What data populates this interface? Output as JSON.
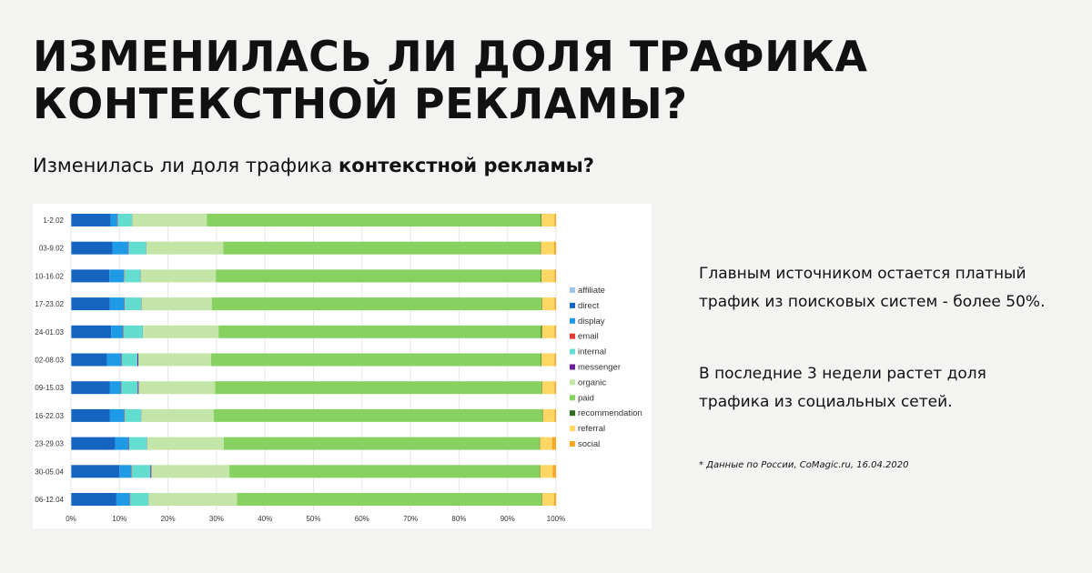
{
  "title": "ИЗМЕНИЛАСЬ ЛИ ДОЛЯ ТРАФИКА КОНТЕКСТНОЙ РЕКЛАМЫ?",
  "subtitle": {
    "prefix": "Изменилась ли доля трафика ",
    "highlight": "контекстной рекламы?"
  },
  "notes": [
    "Главным источником остается платный трафик из поисковых систем - более 50%.",
    "В последние 3 недели  растет доля трафика из социальных сетей."
  ],
  "source": "* Данные по России, CoMagic.ru, 16.04.2020",
  "chart_data": {
    "type": "bar",
    "orientation": "horizontal",
    "stacked": true,
    "normalized": true,
    "title": "",
    "xlabel": "",
    "ylabel": "",
    "xlim": [
      0,
      100
    ],
    "x_ticks": [
      "0%",
      "10%",
      "20%",
      "30%",
      "40%",
      "50%",
      "60%",
      "70%",
      "80%",
      "90%",
      "100%"
    ],
    "grid": true,
    "legend_position": "right",
    "categories": [
      "1-2.02",
      "03-9.02",
      "10-16.02",
      "17-23.02",
      "24-01.03",
      "02-08.03",
      "09-15.03",
      "16-22.03",
      "23-29.03",
      "30-05.04",
      "06-12.04"
    ],
    "series": [
      {
        "name": "affiliate",
        "color": "#9fc5e8",
        "values": [
          0.1,
          0.1,
          0.1,
          0.1,
          0.1,
          0.1,
          0.1,
          0.1,
          0.1,
          0.1,
          0.1
        ]
      },
      {
        "name": "direct",
        "color": "#1565c0",
        "values": [
          8.1,
          8.4,
          7.8,
          7.9,
          8.2,
          7.3,
          7.9,
          7.9,
          9.0,
          9.9,
          9.3
        ]
      },
      {
        "name": "display",
        "color": "#1e9ae6",
        "values": [
          1.4,
          3.3,
          3.0,
          3.0,
          2.4,
          3.0,
          2.4,
          3.0,
          2.8,
          2.4,
          2.8
        ]
      },
      {
        "name": "email",
        "color": "#e53935",
        "values": [
          0.1,
          0.1,
          0.1,
          0.1,
          0.1,
          0.1,
          0.1,
          0.1,
          0.1,
          0.1,
          0.1
        ]
      },
      {
        "name": "internal",
        "color": "#63ddd0",
        "values": [
          2.9,
          3.5,
          3.3,
          3.4,
          4.0,
          3.2,
          3.3,
          3.4,
          3.6,
          3.9,
          3.7
        ]
      },
      {
        "name": "messenger",
        "color": "#6a1b9a",
        "values": [
          0.05,
          0.05,
          0.05,
          0.05,
          0.05,
          0.2,
          0.2,
          0.05,
          0.05,
          0.2,
          0.05
        ]
      },
      {
        "name": "organic",
        "color": "#c3e6a8",
        "values": [
          15.4,
          15.8,
          15.5,
          14.5,
          15.6,
          15.0,
          15.8,
          15.0,
          15.8,
          16.1,
          18.3
        ]
      },
      {
        "name": "paid",
        "color": "#86d160",
        "values": [
          69.0,
          65.0,
          67.0,
          68.0,
          66.5,
          68.0,
          67.5,
          68.0,
          65.0,
          64.0,
          63.0
        ]
      },
      {
        "name": "recommendation",
        "color": "#2e6b1f",
        "values": [
          0.1,
          0.1,
          0.1,
          0.1,
          0.2,
          0.1,
          0.1,
          0.1,
          0.1,
          0.1,
          0.1
        ]
      },
      {
        "name": "referral",
        "color": "#fdd663",
        "values": [
          2.7,
          2.7,
          2.7,
          2.6,
          2.6,
          2.7,
          2.6,
          2.4,
          2.5,
          2.6,
          2.5
        ]
      },
      {
        "name": "social",
        "color": "#f9a825",
        "values": [
          0.3,
          0.4,
          0.3,
          0.3,
          0.3,
          0.3,
          0.3,
          0.3,
          0.8,
          0.7,
          0.4
        ]
      }
    ]
  }
}
